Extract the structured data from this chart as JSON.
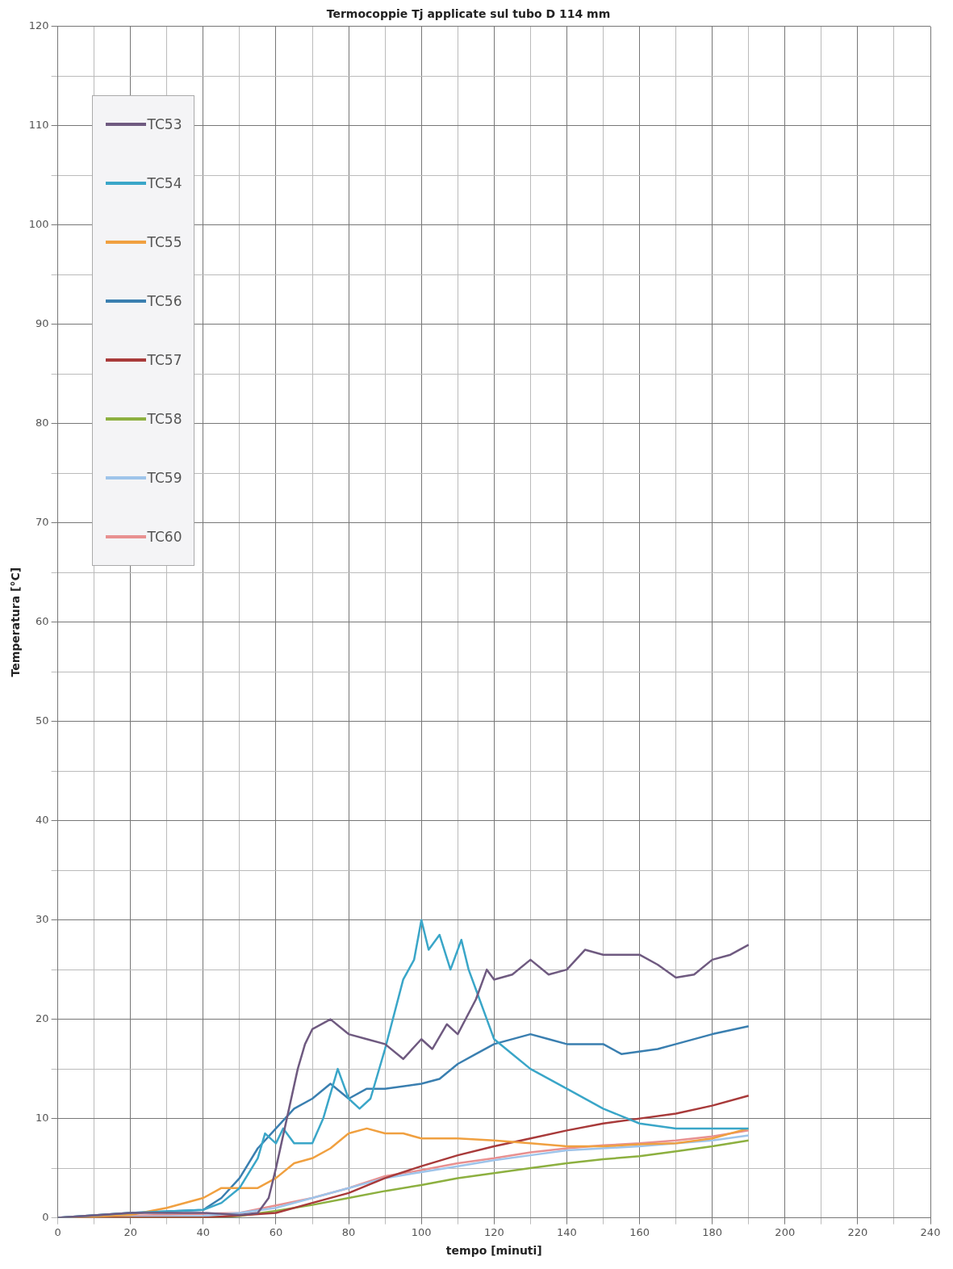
{
  "chart_data": {
    "type": "line",
    "title": "Termocoppie Tj applicate sul tubo D 114 mm",
    "xlabel": "tempo [minuti]",
    "ylabel": "Temperatura [°C]",
    "xlim": [
      0,
      240
    ],
    "ylim": [
      0,
      120
    ],
    "xticks": [
      0,
      {
        "value": 10,
        "label": null
      },
      20,
      {
        "value": 30,
        "label": null
      },
      40,
      {
        "value": 50,
        "label": null
      },
      60,
      {
        "value": 70,
        "label": null
      },
      80,
      {
        "value": 90,
        "label": null
      },
      100,
      {
        "value": 110,
        "label": null
      },
      120,
      {
        "value": 130,
        "label": null
      },
      140,
      {
        "value": 150,
        "label": null
      },
      160,
      {
        "value": 170,
        "label": null
      },
      180,
      {
        "value": 190,
        "label": null
      },
      200,
      {
        "value": 210,
        "label": null
      },
      220,
      {
        "value": 230,
        "label": null
      },
      240
    ],
    "yticks": [
      0,
      {
        "value": 5,
        "label": null
      },
      10,
      {
        "value": 15,
        "label": null
      },
      20,
      {
        "value": 25,
        "label": null
      },
      30,
      {
        "value": 35,
        "label": null
      },
      40,
      {
        "value": 45,
        "label": null
      },
      50,
      {
        "value": 55,
        "label": null
      },
      60,
      {
        "value": 65,
        "label": null
      },
      70,
      {
        "value": 75,
        "label": null
      },
      80,
      {
        "value": 85,
        "label": null
      },
      90,
      {
        "value": 95,
        "label": null
      },
      100,
      {
        "value": 105,
        "label": null
      },
      110,
      {
        "value": 115,
        "label": null
      },
      120
    ],
    "grid": true,
    "legend": "top left",
    "marker": "none",
    "line_style": "solid",
    "series": [
      {
        "name": "TC53",
        "color": "#6f5a80",
        "x": [
          0,
          20,
          40,
          50,
          55,
          58,
          60,
          63,
          66,
          68,
          70,
          75,
          80,
          85,
          90,
          95,
          100,
          103,
          107,
          110,
          115,
          118,
          120,
          125,
          130,
          135,
          140,
          145,
          150,
          160,
          165,
          170,
          175,
          180,
          185,
          190
        ],
        "values": [
          0,
          0.5,
          0.5,
          0.3,
          0.5,
          2,
          5,
          10,
          15,
          17.5,
          19,
          20,
          18.5,
          18,
          17.5,
          16,
          18,
          17,
          19.5,
          18.5,
          22,
          25,
          24,
          24.5,
          26,
          24.5,
          25,
          27,
          26.5,
          26.5,
          25.5,
          24.2,
          24.5,
          26,
          26.5,
          27.5
        ]
      },
      {
        "name": "TC54",
        "color": "#3aa6c8",
        "x": [
          0,
          20,
          40,
          45,
          50,
          55,
          57,
          60,
          62,
          65,
          70,
          73,
          77,
          80,
          83,
          86,
          90,
          95,
          98,
          100,
          102,
          105,
          108,
          111,
          113,
          116,
          118,
          120,
          125,
          130,
          140,
          150,
          160,
          170,
          180,
          190
        ],
        "values": [
          0,
          0.5,
          0.8,
          1.5,
          3,
          6,
          8.5,
          7.5,
          9,
          7.5,
          7.5,
          10,
          15,
          12,
          11,
          12,
          17,
          24,
          26,
          30,
          27,
          28.5,
          25,
          28,
          25,
          22,
          20,
          18,
          16.5,
          15,
          13,
          11,
          9.5,
          9,
          9,
          9
        ]
      },
      {
        "name": "TC55",
        "color": "#f0a040",
        "x": [
          0,
          20,
          30,
          40,
          45,
          55,
          60,
          65,
          70,
          75,
          80,
          85,
          90,
          95,
          100,
          110,
          120,
          130,
          140,
          150,
          160,
          170,
          180,
          190
        ],
        "values": [
          0,
          0.3,
          1,
          2,
          3,
          3,
          4,
          5.5,
          6,
          7,
          8.5,
          9,
          8.5,
          8.5,
          8,
          8,
          7.8,
          7.5,
          7.2,
          7.2,
          7.4,
          7.5,
          8,
          9
        ]
      },
      {
        "name": "TC56",
        "color": "#3a7fb0",
        "x": [
          0,
          20,
          40,
          45,
          50,
          55,
          60,
          65,
          70,
          75,
          80,
          85,
          90,
          100,
          105,
          110,
          115,
          120,
          130,
          135,
          140,
          150,
          155,
          165,
          170,
          180,
          190
        ],
        "values": [
          0,
          0.5,
          0.8,
          2,
          4,
          7,
          9,
          11,
          12,
          13.5,
          12,
          13,
          13,
          13.5,
          14,
          15.5,
          16.5,
          17.5,
          18.5,
          18,
          17.5,
          17.5,
          16.5,
          17,
          17.5,
          18.5,
          19.3
        ]
      },
      {
        "name": "TC57",
        "color": "#a83a3a",
        "x": [
          0,
          40,
          60,
          70,
          80,
          90,
          100,
          110,
          120,
          130,
          140,
          150,
          160,
          170,
          180,
          190
        ],
        "values": [
          0,
          0,
          0.5,
          1.5,
          2.5,
          4,
          5.2,
          6.3,
          7.2,
          8,
          8.8,
          9.5,
          10,
          10.5,
          11.3,
          12.3
        ]
      },
      {
        "name": "TC58",
        "color": "#8db040",
        "x": [
          0,
          40,
          50,
          60,
          70,
          80,
          90,
          100,
          110,
          120,
          130,
          140,
          150,
          160,
          170,
          180,
          190
        ],
        "values": [
          0,
          0,
          0.2,
          0.7,
          1.3,
          2,
          2.7,
          3.3,
          4,
          4.5,
          5,
          5.5,
          5.9,
          6.2,
          6.7,
          7.2,
          7.8
        ]
      },
      {
        "name": "TC59",
        "color": "#9ec4ea",
        "x": [
          0,
          40,
          50,
          60,
          70,
          80,
          90,
          100,
          110,
          120,
          130,
          140,
          150,
          160,
          170,
          180,
          190
        ],
        "values": [
          0,
          0.2,
          0.5,
          1,
          2,
          3,
          4,
          4.6,
          5.2,
          5.8,
          6.3,
          6.8,
          7,
          7.2,
          7.5,
          7.8,
          8.3
        ]
      },
      {
        "name": "TC60",
        "color": "#e89090",
        "x": [
          0,
          50,
          70,
          80,
          90,
          100,
          110,
          120,
          130,
          140,
          150,
          160,
          170,
          180,
          190
        ],
        "values": [
          0,
          0.5,
          2,
          3,
          4.2,
          4.8,
          5.5,
          6,
          6.6,
          7,
          7.3,
          7.5,
          7.8,
          8.2,
          8.8
        ]
      }
    ]
  }
}
